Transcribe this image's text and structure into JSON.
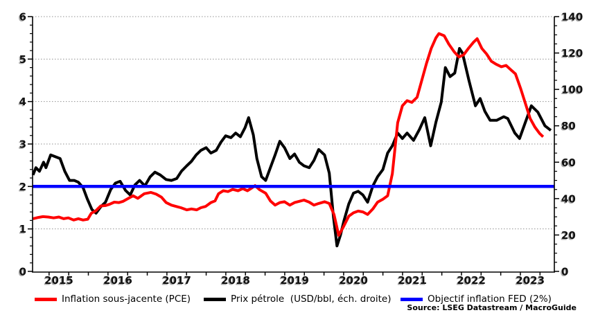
{
  "figure": {
    "source_note": "Source: LSEG Datastream / MacroGuide"
  },
  "chart_data": {
    "type": "line",
    "title": "",
    "grid": "horizontal-dotted",
    "legend_position": "bottom",
    "x_axis": {
      "range": [
        2015.053,
        2023.91
      ],
      "year_labels": [
        "2015",
        "2016",
        "2017",
        "2018",
        "2019",
        "2020",
        "2021",
        "2022",
        "2023"
      ],
      "minor_tick_interval_years": 0.3333
    },
    "y_axis_left": {
      "range": [
        0,
        6
      ],
      "ticks": [
        0,
        1,
        2,
        3,
        4,
        5,
        6
      ],
      "minor_step": 0.2
    },
    "y_axis_right": {
      "range": [
        0,
        140
      ],
      "ticks": [
        0,
        20,
        40,
        60,
        80,
        100,
        120,
        140
      ],
      "minor_step": 5,
      "unit": "USD/bbl"
    },
    "series": [
      {
        "name": "Inflation sous-jacente (PCE)",
        "axis": "left",
        "color": "#ff0000",
        "points": [
          [
            2015.06,
            1.24
          ],
          [
            2015.15,
            1.27
          ],
          [
            2015.23,
            1.29
          ],
          [
            2015.32,
            1.28
          ],
          [
            2015.41,
            1.26
          ],
          [
            2015.5,
            1.28
          ],
          [
            2015.58,
            1.24
          ],
          [
            2015.66,
            1.26
          ],
          [
            2015.75,
            1.21
          ],
          [
            2015.83,
            1.24
          ],
          [
            2015.91,
            1.21
          ],
          [
            2015.99,
            1.23
          ],
          [
            2016.05,
            1.37
          ],
          [
            2016.12,
            1.42
          ],
          [
            2016.21,
            1.54
          ],
          [
            2016.29,
            1.55
          ],
          [
            2016.36,
            1.58
          ],
          [
            2016.44,
            1.63
          ],
          [
            2016.52,
            1.62
          ],
          [
            2016.59,
            1.65
          ],
          [
            2016.68,
            1.72
          ],
          [
            2016.76,
            1.78
          ],
          [
            2016.84,
            1.72
          ],
          [
            2016.95,
            1.83
          ],
          [
            2017.06,
            1.86
          ],
          [
            2017.15,
            1.82
          ],
          [
            2017.24,
            1.75
          ],
          [
            2017.32,
            1.62
          ],
          [
            2017.41,
            1.56
          ],
          [
            2017.49,
            1.53
          ],
          [
            2017.57,
            1.5
          ],
          [
            2017.67,
            1.45
          ],
          [
            2017.75,
            1.47
          ],
          [
            2017.84,
            1.45
          ],
          [
            2017.91,
            1.5
          ],
          [
            2017.99,
            1.53
          ],
          [
            2018.08,
            1.62
          ],
          [
            2018.15,
            1.66
          ],
          [
            2018.21,
            1.83
          ],
          [
            2018.29,
            1.9
          ],
          [
            2018.37,
            1.88
          ],
          [
            2018.45,
            1.93
          ],
          [
            2018.54,
            1.9
          ],
          [
            2018.62,
            1.95
          ],
          [
            2018.7,
            1.9
          ],
          [
            2018.78,
            1.97
          ],
          [
            2018.83,
            2.02
          ],
          [
            2018.91,
            1.92
          ],
          [
            2019.01,
            1.84
          ],
          [
            2019.09,
            1.66
          ],
          [
            2019.17,
            1.56
          ],
          [
            2019.25,
            1.62
          ],
          [
            2019.33,
            1.64
          ],
          [
            2019.42,
            1.56
          ],
          [
            2019.5,
            1.62
          ],
          [
            2019.58,
            1.65
          ],
          [
            2019.66,
            1.68
          ],
          [
            2019.75,
            1.63
          ],
          [
            2019.83,
            1.56
          ],
          [
            2019.91,
            1.6
          ],
          [
            2020.01,
            1.64
          ],
          [
            2020.09,
            1.6
          ],
          [
            2020.17,
            1.34
          ],
          [
            2020.25,
            0.85
          ],
          [
            2020.33,
            1.05
          ],
          [
            2020.42,
            1.3
          ],
          [
            2020.5,
            1.38
          ],
          [
            2020.58,
            1.42
          ],
          [
            2020.66,
            1.4
          ],
          [
            2020.74,
            1.34
          ],
          [
            2020.83,
            1.47
          ],
          [
            2020.91,
            1.63
          ],
          [
            2021.0,
            1.7
          ],
          [
            2021.08,
            1.78
          ],
          [
            2021.16,
            2.3
          ],
          [
            2021.25,
            3.5
          ],
          [
            2021.33,
            3.9
          ],
          [
            2021.41,
            4.02
          ],
          [
            2021.49,
            3.98
          ],
          [
            2021.58,
            4.1
          ],
          [
            2021.66,
            4.5
          ],
          [
            2021.74,
            4.9
          ],
          [
            2021.82,
            5.25
          ],
          [
            2021.9,
            5.5
          ],
          [
            2021.95,
            5.6
          ],
          [
            2022.04,
            5.55
          ],
          [
            2022.12,
            5.35
          ],
          [
            2022.21,
            5.17
          ],
          [
            2022.29,
            5.05
          ],
          [
            2022.37,
            5.1
          ],
          [
            2022.45,
            5.25
          ],
          [
            2022.54,
            5.4
          ],
          [
            2022.6,
            5.48
          ],
          [
            2022.68,
            5.25
          ],
          [
            2022.76,
            5.12
          ],
          [
            2022.84,
            4.95
          ],
          [
            2022.92,
            4.88
          ],
          [
            2023.01,
            4.82
          ],
          [
            2023.09,
            4.85
          ],
          [
            2023.17,
            4.75
          ],
          [
            2023.25,
            4.65
          ],
          [
            2023.34,
            4.3
          ],
          [
            2023.42,
            3.95
          ],
          [
            2023.5,
            3.6
          ],
          [
            2023.58,
            3.4
          ],
          [
            2023.66,
            3.25
          ],
          [
            2023.72,
            3.17
          ]
        ]
      },
      {
        "name": "Prix pétrole  (USD/bbl, éch. droite)",
        "axis": "right",
        "color": "#000000",
        "points": [
          [
            2015.06,
            53
          ],
          [
            2015.11,
            57
          ],
          [
            2015.17,
            55
          ],
          [
            2015.24,
            60
          ],
          [
            2015.28,
            57
          ],
          [
            2015.36,
            64
          ],
          [
            2015.44,
            63
          ],
          [
            2015.52,
            62
          ],
          [
            2015.6,
            55
          ],
          [
            2015.68,
            50
          ],
          [
            2015.76,
            50
          ],
          [
            2015.83,
            49
          ],
          [
            2015.91,
            46
          ],
          [
            2015.98,
            40
          ],
          [
            2016.06,
            34
          ],
          [
            2016.13,
            32
          ],
          [
            2016.21,
            35.5
          ],
          [
            2016.29,
            38
          ],
          [
            2016.38,
            45
          ],
          [
            2016.46,
            48.5
          ],
          [
            2016.54,
            49.5
          ],
          [
            2016.63,
            44.5
          ],
          [
            2016.71,
            42
          ],
          [
            2016.79,
            47.5
          ],
          [
            2016.87,
            50
          ],
          [
            2016.96,
            47
          ],
          [
            2017.05,
            52
          ],
          [
            2017.13,
            54.5
          ],
          [
            2017.22,
            53
          ],
          [
            2017.32,
            50.5
          ],
          [
            2017.41,
            50
          ],
          [
            2017.5,
            51
          ],
          [
            2017.58,
            55
          ],
          [
            2017.67,
            58
          ],
          [
            2017.75,
            60.5
          ],
          [
            2017.83,
            64
          ],
          [
            2017.91,
            66.5
          ],
          [
            2018.0,
            68
          ],
          [
            2018.08,
            65
          ],
          [
            2018.17,
            66.5
          ],
          [
            2018.25,
            71
          ],
          [
            2018.33,
            74.5
          ],
          [
            2018.42,
            73.5
          ],
          [
            2018.5,
            76
          ],
          [
            2018.58,
            74
          ],
          [
            2018.66,
            79
          ],
          [
            2018.72,
            84.5
          ],
          [
            2018.8,
            75
          ],
          [
            2018.86,
            62
          ],
          [
            2018.94,
            52
          ],
          [
            2019.01,
            50
          ],
          [
            2019.09,
            57
          ],
          [
            2019.17,
            64
          ],
          [
            2019.25,
            71.5
          ],
          [
            2019.33,
            68
          ],
          [
            2019.42,
            62
          ],
          [
            2019.5,
            64.5
          ],
          [
            2019.58,
            60
          ],
          [
            2019.66,
            58
          ],
          [
            2019.75,
            57
          ],
          [
            2019.83,
            61
          ],
          [
            2019.91,
            67
          ],
          [
            2020.01,
            64
          ],
          [
            2020.09,
            54
          ],
          [
            2020.16,
            30
          ],
          [
            2020.22,
            14
          ],
          [
            2020.28,
            20
          ],
          [
            2020.34,
            28
          ],
          [
            2020.42,
            37
          ],
          [
            2020.5,
            43
          ],
          [
            2020.58,
            44
          ],
          [
            2020.66,
            42
          ],
          [
            2020.74,
            38
          ],
          [
            2020.83,
            47
          ],
          [
            2020.91,
            52
          ],
          [
            2021.0,
            56
          ],
          [
            2021.08,
            65
          ],
          [
            2021.16,
            69
          ],
          [
            2021.25,
            76
          ],
          [
            2021.33,
            73
          ],
          [
            2021.41,
            76
          ],
          [
            2021.52,
            72
          ],
          [
            2021.62,
            78
          ],
          [
            2021.71,
            84.5
          ],
          [
            2021.81,
            69
          ],
          [
            2021.9,
            82
          ],
          [
            2021.99,
            93
          ],
          [
            2022.06,
            112
          ],
          [
            2022.14,
            107
          ],
          [
            2022.22,
            109
          ],
          [
            2022.3,
            122.5
          ],
          [
            2022.35,
            120
          ],
          [
            2022.46,
            105
          ],
          [
            2022.57,
            91
          ],
          [
            2022.65,
            95
          ],
          [
            2022.73,
            88
          ],
          [
            2022.82,
            83
          ],
          [
            2022.93,
            83
          ],
          [
            2023.05,
            85
          ],
          [
            2023.12,
            84
          ],
          [
            2023.24,
            76
          ],
          [
            2023.32,
            73
          ],
          [
            2023.43,
            83
          ],
          [
            2023.52,
            91
          ],
          [
            2023.63,
            87.5
          ],
          [
            2023.75,
            80
          ],
          [
            2023.85,
            77.5
          ]
        ]
      },
      {
        "name": "Objectif inflation FED (2%)",
        "axis": "left",
        "color": "#0000ff",
        "points": [
          [
            2015.053,
            2
          ],
          [
            2023.91,
            2
          ]
        ]
      }
    ]
  }
}
